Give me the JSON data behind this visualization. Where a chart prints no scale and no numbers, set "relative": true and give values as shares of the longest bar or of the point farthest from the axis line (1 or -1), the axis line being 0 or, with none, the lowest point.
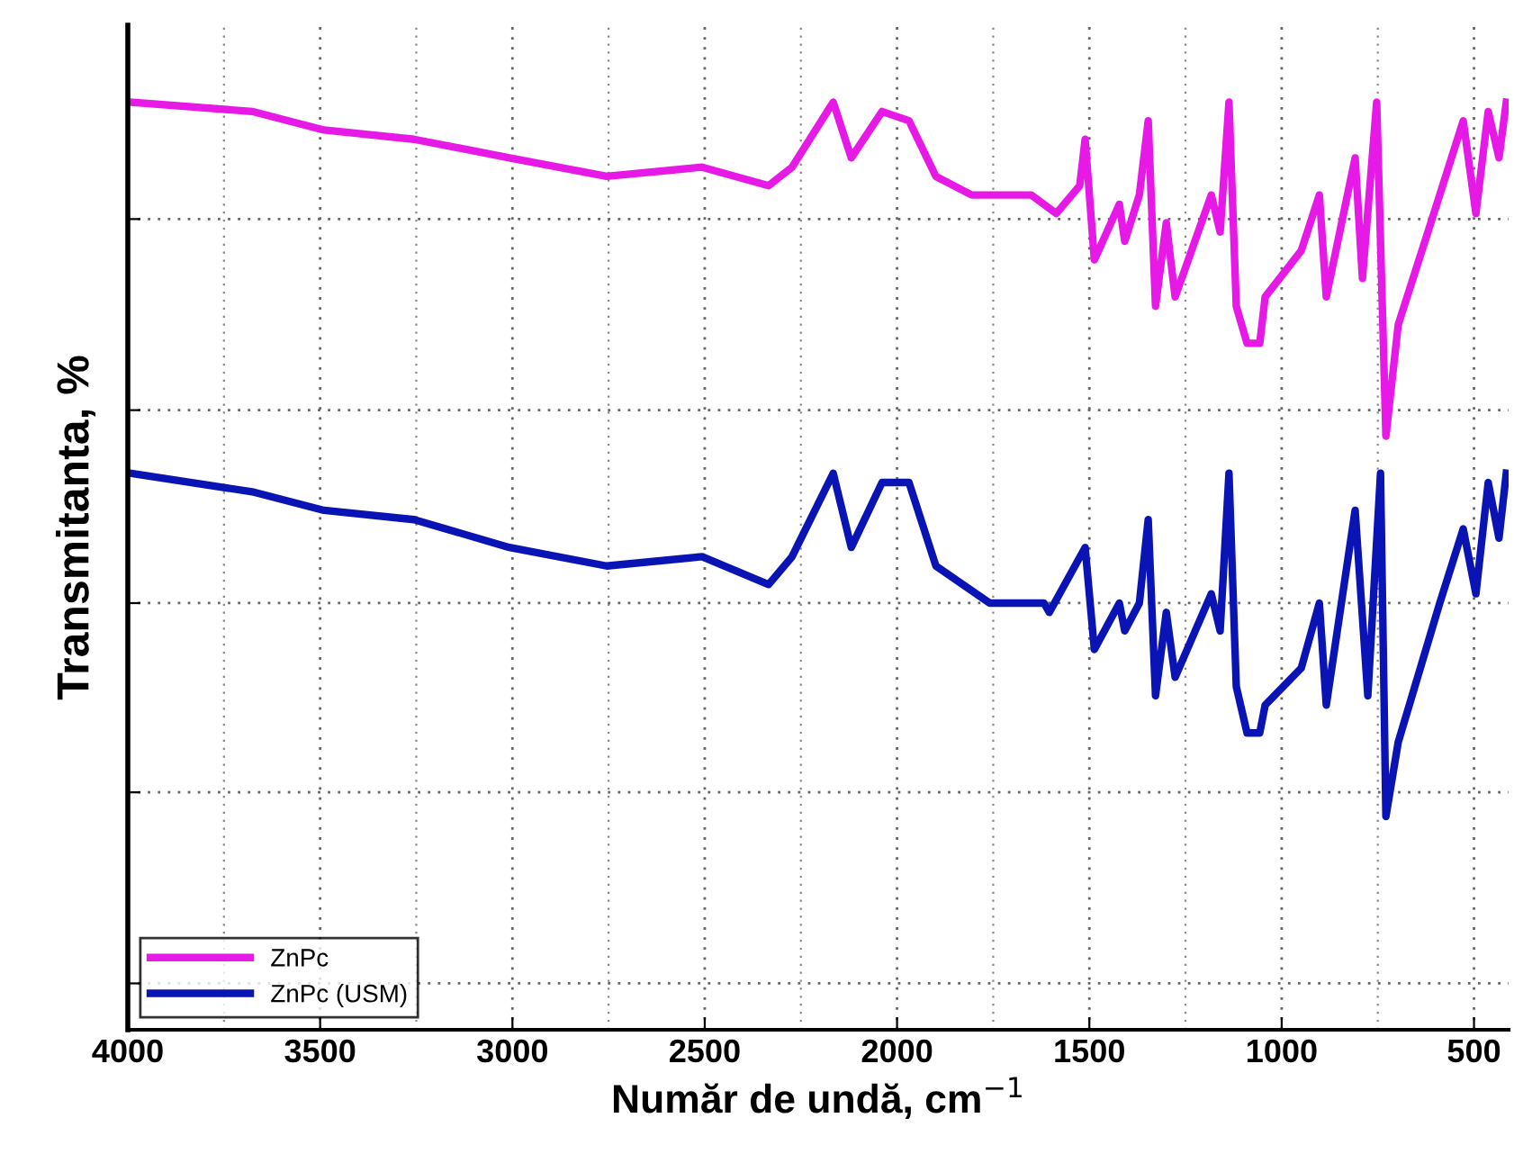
{
  "chart_data": {
    "type": "line",
    "xlabel": "Număr de undă, cm$^{−1}$",
    "ylabel": "Transmitanta, %",
    "relative": true,
    "xlim": [
      4000,
      410
    ],
    "xticks": [
      4000,
      3500,
      3000,
      2500,
      2000,
      1500,
      1000,
      500
    ],
    "grid": true,
    "legend": "lower left",
    "line_style": "solid",
    "marker": "none",
    "tick_labels": "x",
    "series": [
      {
        "name": "ZnPc",
        "color": "#e619e6",
        "x": [
          3995,
          3677,
          3490,
          3256,
          3008,
          2755,
          2507,
          2334,
          2273,
          2166,
          2119,
          2039,
          1969,
          1899,
          1806,
          1651,
          1586,
          1525,
          1511,
          1487,
          1422,
          1408,
          1370,
          1347,
          1328,
          1300,
          1277,
          1183,
          1160,
          1137,
          1118,
          1090,
          1057,
          1043,
          949,
          902,
          884,
          809,
          790,
          753,
          729,
          697,
          589,
          528,
          495,
          463,
          435,
          416
        ],
        "values": [
          1.0,
          0.99,
          0.97,
          0.96,
          0.94,
          0.92,
          0.93,
          0.91,
          0.93,
          1.0,
          0.94,
          0.99,
          0.98,
          0.92,
          0.9,
          0.9,
          0.88,
          0.91,
          0.96,
          0.83,
          0.89,
          0.85,
          0.9,
          0.98,
          0.78,
          0.87,
          0.79,
          0.9,
          0.86,
          1.0,
          0.78,
          0.74,
          0.74,
          0.79,
          0.84,
          0.9,
          0.79,
          0.94,
          0.81,
          1.0,
          0.64,
          0.76,
          0.9,
          0.98,
          0.88,
          0.99,
          0.94,
          1.0
        ]
      },
      {
        "name": "ZnPc (USM)",
        "color": "#0a14b4",
        "x": [
          3995,
          3677,
          3490,
          3256,
          3008,
          2755,
          2507,
          2334,
          2273,
          2166,
          2119,
          2039,
          1969,
          1899,
          1759,
          1618,
          1604,
          1511,
          1487,
          1422,
          1408,
          1370,
          1347,
          1328,
          1300,
          1277,
          1183,
          1160,
          1137,
          1118,
          1090,
          1057,
          1043,
          949,
          902,
          884,
          809,
          776,
          743,
          729,
          697,
          589,
          528,
          495,
          463,
          435,
          416
        ],
        "values": [
          0.6,
          0.58,
          0.56,
          0.55,
          0.52,
          0.5,
          0.51,
          0.48,
          0.51,
          0.6,
          0.52,
          0.59,
          0.59,
          0.5,
          0.46,
          0.46,
          0.45,
          0.52,
          0.41,
          0.46,
          0.43,
          0.46,
          0.55,
          0.36,
          0.45,
          0.38,
          0.47,
          0.43,
          0.6,
          0.37,
          0.32,
          0.32,
          0.35,
          0.39,
          0.46,
          0.35,
          0.56,
          0.36,
          0.6,
          0.23,
          0.31,
          0.46,
          0.54,
          0.47,
          0.59,
          0.53,
          0.6
        ]
      }
    ]
  }
}
